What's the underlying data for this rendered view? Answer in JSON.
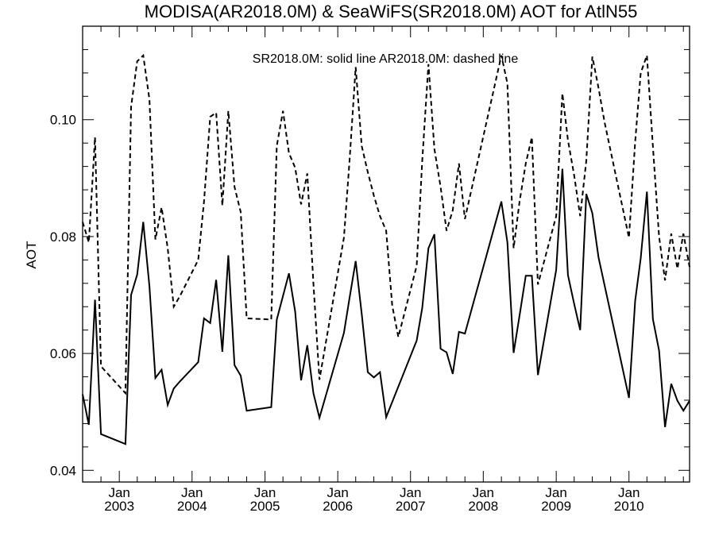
{
  "chart_data": {
    "type": "line",
    "title": "MODISA(AR2018.0M) & SeaWiFS(SR2018.0M)  AOT for AtlN55",
    "ylabel": "AOT",
    "xlabel": "",
    "annotation": "SR2018.0M: solid line   AR2018.0M: dashed line",
    "xlim": [
      "2002-07-01",
      "2010-11-01"
    ],
    "ylim": [
      0.038,
      0.116
    ],
    "y_ticks": [
      0.04,
      0.06,
      0.08,
      0.1
    ],
    "y_tick_labels": [
      "0.04",
      "0.06",
      "0.08",
      "0.10"
    ],
    "x_tick_labels": [
      {
        "top": "Jan",
        "bottom": "2003",
        "date": "2003-01-01"
      },
      {
        "top": "Jan",
        "bottom": "2004",
        "date": "2004-01-01"
      },
      {
        "top": "Jan",
        "bottom": "2005",
        "date": "2005-01-01"
      },
      {
        "top": "Jan",
        "bottom": "2006",
        "date": "2006-01-01"
      },
      {
        "top": "Jan",
        "bottom": "2007",
        "date": "2007-01-01"
      },
      {
        "top": "Jan",
        "bottom": "2008",
        "date": "2008-01-01"
      },
      {
        "top": "Jan",
        "bottom": "2009",
        "date": "2009-01-01"
      },
      {
        "top": "Jan",
        "bottom": "2010",
        "date": "2010-01-01"
      }
    ],
    "grid": false,
    "series": [
      {
        "name": "SR2018.0M",
        "style": "solid",
        "color": "#000000",
        "x": [
          "2002-07-01",
          "2002-08-01",
          "2002-09-01",
          "2002-10-01",
          "2003-02-01",
          "2003-03-01",
          "2003-04-01",
          "2003-05-01",
          "2003-06-01",
          "2003-07-01",
          "2003-08-01",
          "2003-09-01",
          "2003-10-01",
          "2003-11-01",
          "2004-02-01",
          "2004-03-01",
          "2004-04-01",
          "2004-05-01",
          "2004-06-01",
          "2004-07-01",
          "2004-08-01",
          "2004-09-01",
          "2004-10-01",
          "2005-02-01",
          "2005-03-01",
          "2005-05-01",
          "2005-06-01",
          "2005-07-01",
          "2005-08-01",
          "2005-09-01",
          "2005-10-01",
          "2006-02-01",
          "2006-03-01",
          "2006-04-01",
          "2006-05-01",
          "2006-06-01",
          "2006-07-01",
          "2006-08-01",
          "2006-09-01",
          "2007-02-01",
          "2007-03-01",
          "2007-04-01",
          "2007-05-01",
          "2007-06-01",
          "2007-07-01",
          "2007-08-01",
          "2007-09-01",
          "2007-10-01",
          "2008-04-01",
          "2008-05-01",
          "2008-06-01",
          "2008-07-01",
          "2008-08-01",
          "2008-09-01",
          "2008-10-01",
          "2009-01-01",
          "2009-02-01",
          "2009-03-01",
          "2009-04-01",
          "2009-05-01",
          "2009-06-01",
          "2009-07-01",
          "2009-08-01",
          "2010-01-01",
          "2010-02-01",
          "2010-03-01",
          "2010-04-01",
          "2010-05-01",
          "2010-06-01",
          "2010-07-01",
          "2010-08-01",
          "2010-09-01",
          "2010-10-01",
          "2010-11-01"
        ],
        "y": [
          0.053,
          0.0478,
          0.0692,
          0.0462,
          0.0445,
          0.07,
          0.0735,
          0.0825,
          0.0715,
          0.0558,
          0.0572,
          0.0512,
          0.054,
          0.0552,
          0.0585,
          0.066,
          0.0652,
          0.0726,
          0.0603,
          0.0768,
          0.058,
          0.0562,
          0.0502,
          0.0508,
          0.0658,
          0.0737,
          0.0672,
          0.0554,
          0.0614,
          0.0532,
          0.049,
          0.0635,
          0.0695,
          0.0758,
          0.0668,
          0.0568,
          0.0559,
          0.0568,
          0.0491,
          0.0622,
          0.0678,
          0.078,
          0.0804,
          0.0608,
          0.0602,
          0.0565,
          0.0637,
          0.0634,
          0.086,
          0.079,
          0.0601,
          0.0665,
          0.0733,
          0.0733,
          0.0563,
          0.0743,
          0.0916,
          0.0734,
          0.0685,
          0.064,
          0.0873,
          0.084,
          0.0765,
          0.0524,
          0.069,
          0.0763,
          0.0877,
          0.0659,
          0.0605,
          0.0474,
          0.0548,
          0.0519,
          0.0502,
          0.0519
        ]
      },
      {
        "name": "AR2018.0M",
        "style": "dashed",
        "color": "#000000",
        "x": [
          "2002-07-01",
          "2002-08-01",
          "2002-09-01",
          "2002-10-01",
          "2003-02-01",
          "2003-03-01",
          "2003-04-01",
          "2003-05-01",
          "2003-06-01",
          "2003-07-01",
          "2003-08-01",
          "2003-09-01",
          "2003-10-01",
          "2003-11-01",
          "2004-02-01",
          "2004-03-01",
          "2004-04-01",
          "2004-05-01",
          "2004-06-01",
          "2004-07-01",
          "2004-08-01",
          "2004-09-01",
          "2004-10-01",
          "2005-02-01",
          "2005-03-01",
          "2005-04-01",
          "2005-05-01",
          "2005-06-01",
          "2005-07-01",
          "2005-08-01",
          "2005-09-01",
          "2005-10-01",
          "2006-02-01",
          "2006-03-01",
          "2006-04-01",
          "2006-05-01",
          "2006-06-01",
          "2006-07-01",
          "2006-08-01",
          "2006-09-01",
          "2006-10-01",
          "2006-11-01",
          "2007-02-01",
          "2007-03-01",
          "2007-04-01",
          "2007-05-01",
          "2007-06-01",
          "2007-07-01",
          "2007-08-01",
          "2007-09-01",
          "2007-10-01",
          "2008-04-01",
          "2008-05-01",
          "2008-06-01",
          "2008-07-01",
          "2008-08-01",
          "2008-09-01",
          "2008-10-01",
          "2009-01-01",
          "2009-02-01",
          "2009-03-01",
          "2009-04-01",
          "2009-05-01",
          "2009-06-01",
          "2009-07-01",
          "2009-08-01",
          "2009-09-01",
          "2010-01-01",
          "2010-02-01",
          "2010-03-01",
          "2010-04-01",
          "2010-05-01",
          "2010-06-01",
          "2010-07-01",
          "2010-08-01",
          "2010-09-01",
          "2010-10-01",
          "2010-11-01"
        ],
        "y": [
          0.0825,
          0.079,
          0.097,
          0.0578,
          0.0532,
          0.1022,
          0.11,
          0.111,
          0.1035,
          0.0795,
          0.085,
          0.078,
          0.068,
          0.0698,
          0.076,
          0.086,
          0.1005,
          0.1012,
          0.0853,
          0.1015,
          0.0885,
          0.0842,
          0.066,
          0.0658,
          0.0955,
          0.1015,
          0.0943,
          0.0918,
          0.0855,
          0.0908,
          0.072,
          0.0555,
          0.0798,
          0.093,
          0.109,
          0.0955,
          0.091,
          0.087,
          0.0835,
          0.081,
          0.0682,
          0.0628,
          0.075,
          0.093,
          0.1095,
          0.095,
          0.0885,
          0.081,
          0.0845,
          0.0925,
          0.083,
          0.111,
          0.1062,
          0.078,
          0.086,
          0.0925,
          0.097,
          0.0718,
          0.0835,
          0.1045,
          0.0965,
          0.0905,
          0.0835,
          0.093,
          0.1108,
          0.1055,
          0.0995,
          0.0798,
          0.0962,
          0.108,
          0.111,
          0.0955,
          0.08,
          0.0725,
          0.0805,
          0.0745,
          0.0805,
          0.0748
        ]
      }
    ]
  }
}
